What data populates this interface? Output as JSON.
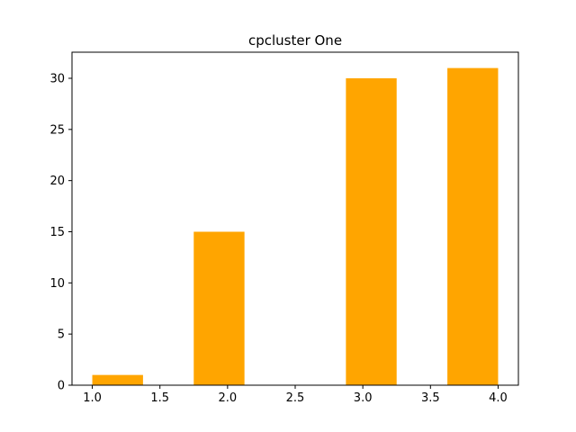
{
  "chart_data": {
    "type": "bar",
    "title": "cpcluster One",
    "xlabel": "",
    "ylabel": "",
    "bar_color": "#ffa500",
    "grid": false,
    "legend": "none",
    "xlim": [
      0.85,
      4.15
    ],
    "ylim": [
      0,
      32.55
    ],
    "bars": [
      {
        "x0": 1.0,
        "x1": 1.375,
        "value": 1
      },
      {
        "x0": 1.75,
        "x1": 2.125,
        "value": 15
      },
      {
        "x0": 2.875,
        "x1": 3.25,
        "value": 30
      },
      {
        "x0": 3.625,
        "x1": 4.0,
        "value": 31
      }
    ],
    "x_ticks": [
      {
        "value": 1.0,
        "label": "1.0"
      },
      {
        "value": 1.5,
        "label": "1.5"
      },
      {
        "value": 2.0,
        "label": "2.0"
      },
      {
        "value": 2.5,
        "label": "2.5"
      },
      {
        "value": 3.0,
        "label": "3.0"
      },
      {
        "value": 3.5,
        "label": "3.5"
      },
      {
        "value": 4.0,
        "label": "4.0"
      }
    ],
    "y_ticks": [
      {
        "value": 0,
        "label": "0"
      },
      {
        "value": 5,
        "label": "5"
      },
      {
        "value": 10,
        "label": "10"
      },
      {
        "value": 15,
        "label": "15"
      },
      {
        "value": 20,
        "label": "20"
      },
      {
        "value": 25,
        "label": "25"
      },
      {
        "value": 30,
        "label": "30"
      }
    ]
  }
}
